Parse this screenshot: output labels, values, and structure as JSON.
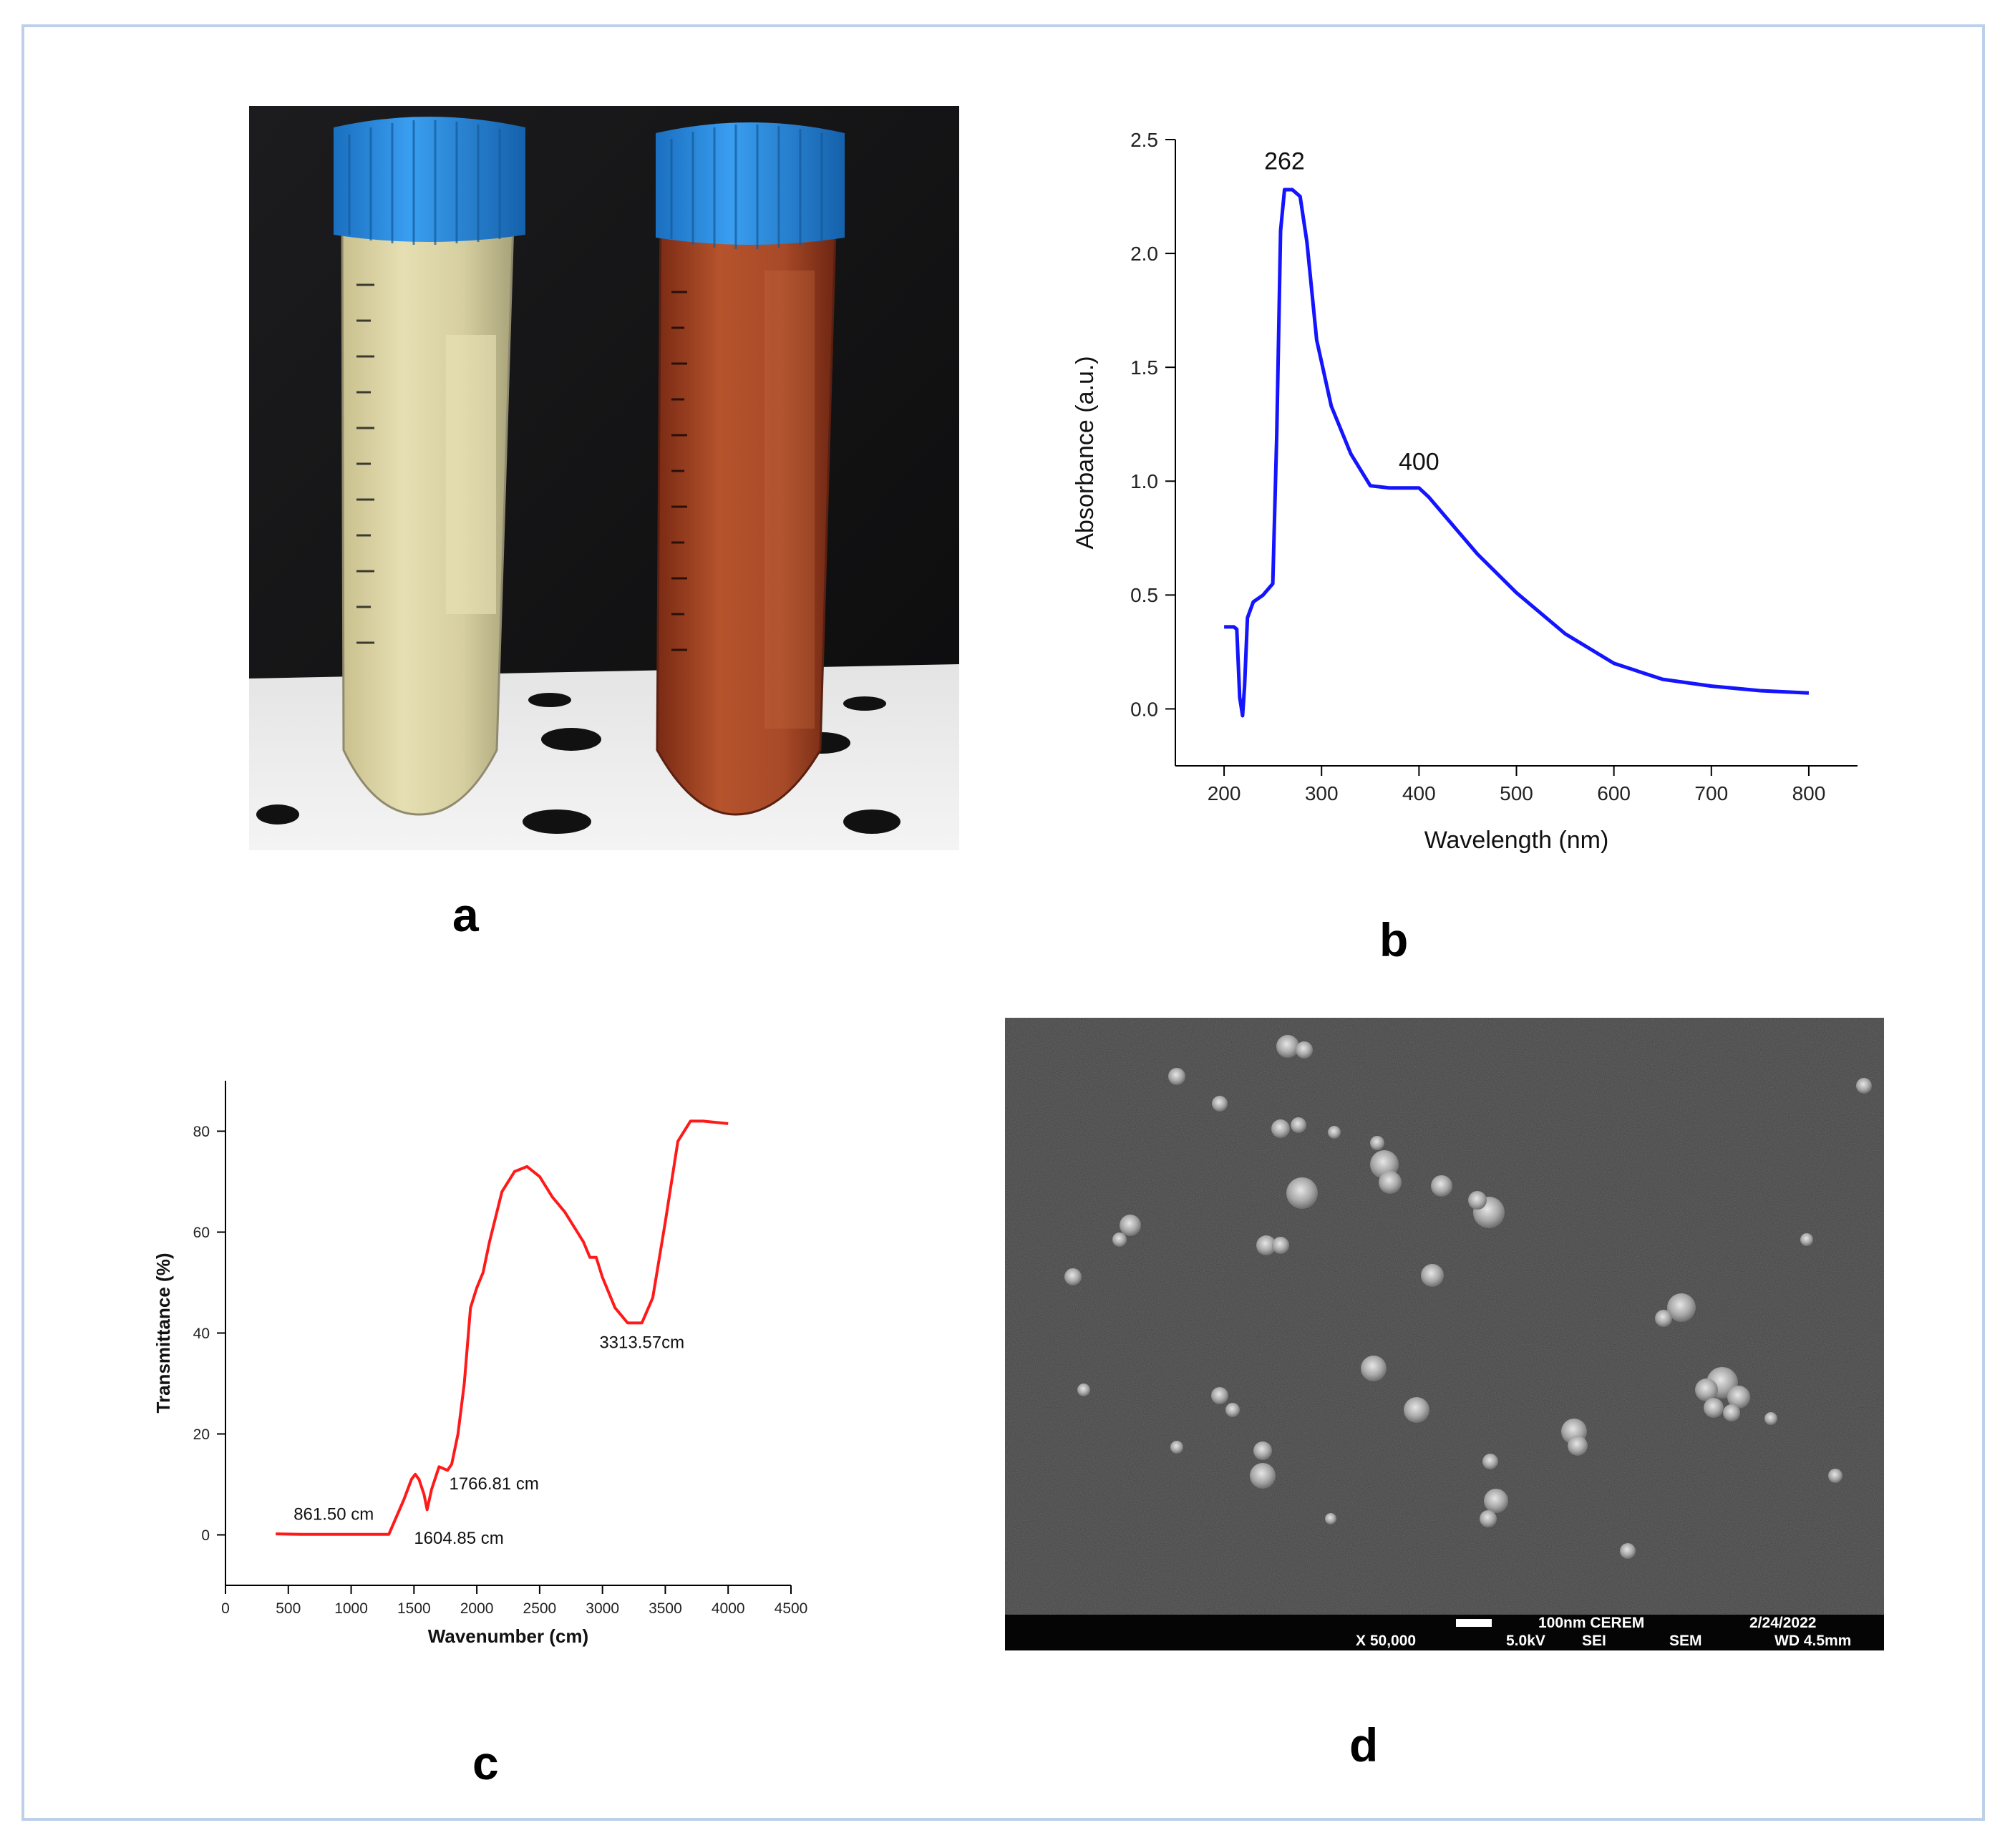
{
  "panels": {
    "a": {
      "label": "a"
    },
    "b": {
      "label": "b"
    },
    "c": {
      "label": "c"
    },
    "d": {
      "label": "d"
    }
  },
  "sem_bar": {
    "line1": "100nm CEREM",
    "date": "2/24/2022",
    "mag": "X 50,000",
    "kv": "5.0kV",
    "mode": "SEI",
    "type": "SEM",
    "wd": "WD 4.5mm"
  },
  "chart_data": [
    {
      "id": "uv",
      "type": "line",
      "xlabel": "Wavelength (nm)",
      "ylabel": "Absorbance (a.u.)",
      "xlim": [
        150,
        850
      ],
      "ylim": [
        -0.25,
        2.5
      ],
      "xticks": [
        200,
        300,
        400,
        500,
        600,
        700,
        800
      ],
      "yticks": [
        0.0,
        0.5,
        1.0,
        1.5,
        2.0,
        2.5
      ],
      "ytick_labels": [
        "0.0",
        "0.5",
        "1.0",
        "1.5",
        "2.0",
        "2.5"
      ],
      "color": "#1414ff",
      "grid": false,
      "series": [
        {
          "x": [
            200,
            210,
            213,
            216,
            219,
            221,
            224,
            230,
            240,
            250,
            254,
            258,
            262,
            270,
            278,
            285,
            295,
            310,
            330,
            350,
            370,
            390,
            400,
            410,
            430,
            460,
            500,
            550,
            600,
            650,
            700,
            750,
            800
          ],
          "y": [
            0.36,
            0.36,
            0.35,
            0.05,
            -0.03,
            0.1,
            0.4,
            0.47,
            0.5,
            0.55,
            1.2,
            2.1,
            2.28,
            2.28,
            2.25,
            2.05,
            1.62,
            1.33,
            1.12,
            0.98,
            0.97,
            0.97,
            0.97,
            0.93,
            0.83,
            0.68,
            0.51,
            0.33,
            0.2,
            0.13,
            0.1,
            0.08,
            0.07
          ]
        }
      ],
      "annotations": [
        {
          "text": "262",
          "x": 262,
          "y": 2.37
        },
        {
          "text": "400",
          "x": 400,
          "y": 1.05
        }
      ]
    },
    {
      "id": "ftir",
      "type": "line",
      "xlabel": "Wavenumber (cm)",
      "ylabel": "Transmittance (%)",
      "xlim": [
        0,
        4500
      ],
      "ylim": [
        -10,
        90
      ],
      "xticks": [
        0,
        500,
        1000,
        1500,
        2000,
        2500,
        3000,
        3500,
        4000,
        4500
      ],
      "yticks": [
        0,
        20,
        40,
        60,
        80
      ],
      "color": "#ff1a1a",
      "grid": false,
      "series": [
        {
          "x": [
            400,
            600,
            861.5,
            1000,
            1200,
            1300,
            1350,
            1420,
            1480,
            1510,
            1540,
            1580,
            1604.85,
            1640,
            1700,
            1766.81,
            1800,
            1850,
            1900,
            1950,
            2000,
            2050,
            2100,
            2200,
            2300,
            2400,
            2500,
            2600,
            2700,
            2800,
            2850,
            2900,
            2950,
            3000,
            3100,
            3200,
            3313.57,
            3400,
            3500,
            3600,
            3700,
            3800,
            4000
          ],
          "y": [
            0.2,
            0.1,
            0.1,
            0.1,
            0.1,
            0.1,
            3,
            7,
            11,
            12,
            11,
            8,
            5,
            9,
            13.5,
            12.8,
            14,
            20,
            30,
            45,
            49,
            52,
            58,
            68,
            72,
            73,
            71,
            67,
            64,
            60,
            58,
            55,
            55,
            51,
            45,
            42,
            42,
            47,
            62,
            78,
            82,
            82,
            81.5
          ]
        }
      ],
      "annotations": [
        {
          "text": "861.50 cm",
          "x": 861.5,
          "y": 3.0,
          "anchor": "middle"
        },
        {
          "text": "1604.85 cm",
          "x": 1500,
          "y": -1.8,
          "anchor": "start"
        },
        {
          "text": "1766.81 cm",
          "x": 1780,
          "y": 9.0,
          "anchor": "start"
        },
        {
          "text": "3313.57cm",
          "x": 3313.57,
          "y": 37.0,
          "anchor": "middle"
        }
      ]
    }
  ]
}
